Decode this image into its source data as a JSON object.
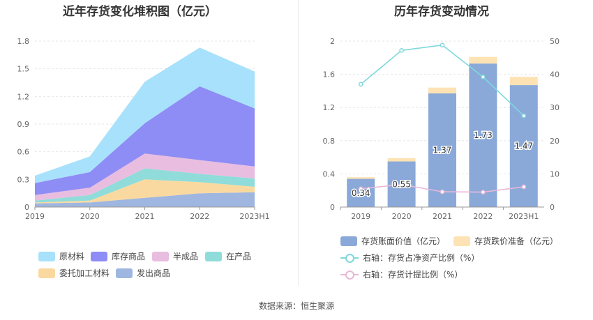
{
  "left_chart": {
    "title": "近年存货变化堆积图（亿元）",
    "legend": [
      {
        "label": "原材料",
        "color": "#a8e1fb"
      },
      {
        "label": "库存商品",
        "color": "#8e8cf5"
      },
      {
        "label": "半成品",
        "color": "#e8bde0"
      },
      {
        "label": "在产品",
        "color": "#8fdcda"
      },
      {
        "label": "委托加工材料",
        "color": "#fad9a0"
      },
      {
        "label": "发出商品",
        "color": "#9fb6e0"
      }
    ]
  },
  "right_chart": {
    "title": "历年存货变动情况",
    "legend": [
      {
        "label": "存货账面价值（亿元）",
        "color": "#8aa9d9",
        "kind": "bar"
      },
      {
        "label": "存货跌价准备（亿元）",
        "color": "#fde2b3",
        "kind": "bar"
      },
      {
        "label": "右轴：存货占净资产比例（%）",
        "color": "#7fd8dc",
        "kind": "line"
      },
      {
        "label": "右轴：存货计提比例（%）",
        "color": "#e8b8d8",
        "kind": "line"
      }
    ]
  },
  "chart_data": [
    {
      "type": "area",
      "stacked": true,
      "title": "近年存货变化堆积图（亿元）",
      "x": [
        "2019",
        "2020",
        "2021",
        "2022",
        "2023H1"
      ],
      "ylim": [
        0,
        1.8
      ],
      "yticks": [
        "0",
        "0.3",
        "0.6",
        "0.9",
        "1.2",
        "1.5",
        "1.8"
      ],
      "grid": true,
      "legend_position": "bottom",
      "series": [
        {
          "name": "发出商品",
          "values": [
            0.04,
            0.05,
            0.1,
            0.15,
            0.16
          ]
        },
        {
          "name": "委托加工材料",
          "values": [
            0.01,
            0.02,
            0.2,
            0.12,
            0.06
          ]
        },
        {
          "name": "在产品",
          "values": [
            0.02,
            0.06,
            0.12,
            0.09,
            0.09
          ]
        },
        {
          "name": "半成品",
          "values": [
            0.06,
            0.08,
            0.16,
            0.15,
            0.13
          ]
        },
        {
          "name": "库存商品",
          "values": [
            0.13,
            0.17,
            0.33,
            0.8,
            0.63
          ]
        },
        {
          "name": "原材料",
          "values": [
            0.08,
            0.17,
            0.45,
            0.42,
            0.4
          ]
        }
      ]
    },
    {
      "type": "bar",
      "stacked": true,
      "title": "历年存货变动情况",
      "categories": [
        "2019",
        "2020",
        "2021",
        "2022",
        "2023H1"
      ],
      "ylim": [
        0,
        2
      ],
      "yticks": [
        "0",
        "0.4",
        "0.8",
        "1.2",
        "1.6",
        "2"
      ],
      "y2lim": [
        0,
        50
      ],
      "y2ticks": [
        "0",
        "10",
        "20",
        "30",
        "40",
        "50"
      ],
      "grid": true,
      "legend_position": "bottom",
      "series": [
        {
          "name": "存货账面价值（亿元）",
          "values": [
            0.34,
            0.55,
            1.37,
            1.73,
            1.47
          ],
          "labels": [
            "0.34",
            "0.55",
            "1.37",
            "1.73",
            "1.47"
          ]
        },
        {
          "name": "存货跌价准备（亿元）",
          "values": [
            0.02,
            0.04,
            0.07,
            0.08,
            0.1
          ]
        }
      ],
      "line_series": [
        {
          "name": "右轴：存货占净资产比例（%）",
          "axis": "right",
          "values": [
            37,
            47.2,
            48.8,
            39.2,
            27.5
          ]
        },
        {
          "name": "右轴：存货计提比例（%）",
          "axis": "right",
          "values": [
            5.5,
            6.8,
            4.6,
            4.5,
            6.1
          ]
        }
      ]
    }
  ],
  "source_text": "数据来源：恒生聚源"
}
